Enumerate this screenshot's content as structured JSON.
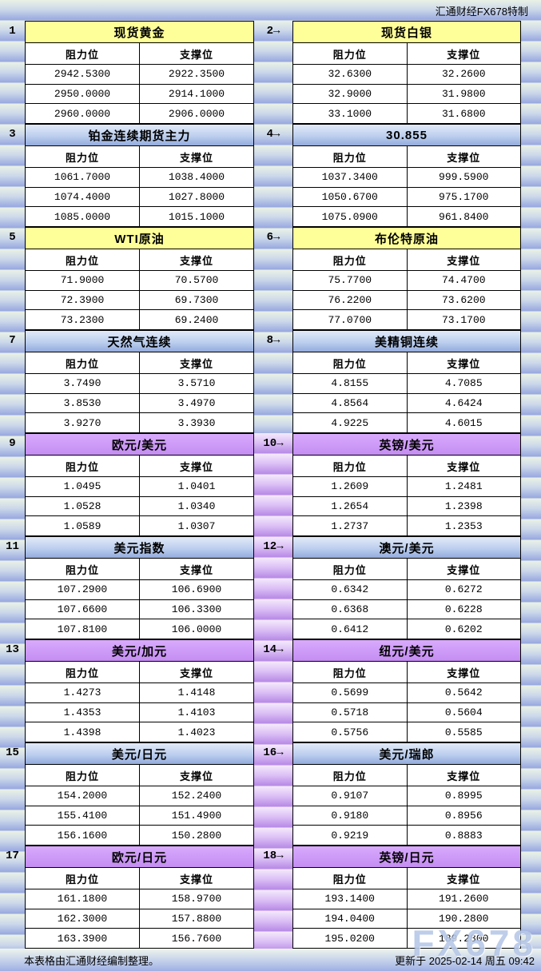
{
  "header": {
    "credit": "汇通财经FX678特制"
  },
  "footer": {
    "note": "本表格由汇通财经编制整理。",
    "updated": "更新于 2025-02-14 周五 09:42"
  },
  "watermark": "FX678",
  "icons": {
    "right_arrow": "→"
  },
  "col_headers": {
    "resistance": "阻力位",
    "support": "支撑位"
  },
  "sections": [
    {
      "num": "1",
      "title": "现货黄金",
      "theme": "yellow",
      "rows": [
        [
          "2942.5300",
          "2922.3500"
        ],
        [
          "2950.0000",
          "2914.1000"
        ],
        [
          "2960.0000",
          "2906.0000"
        ]
      ]
    },
    {
      "num": "2",
      "title": "现货白银",
      "theme": "yellow",
      "rows": [
        [
          "32.6300",
          "32.2600"
        ],
        [
          "32.9000",
          "31.9800"
        ],
        [
          "33.1000",
          "31.6800"
        ]
      ]
    },
    {
      "num": "3",
      "title": "铂金连续期货主力",
      "theme": "blue",
      "rows": [
        [
          "1061.7000",
          "1038.4000"
        ],
        [
          "1074.4000",
          "1027.8000"
        ],
        [
          "1085.0000",
          "1015.1000"
        ]
      ]
    },
    {
      "num": "4",
      "title": "30.855",
      "theme": "blue",
      "rows": [
        [
          "1037.3400",
          "999.5900"
        ],
        [
          "1050.6700",
          "975.1700"
        ],
        [
          "1075.0900",
          "961.8400"
        ]
      ]
    },
    {
      "num": "5",
      "title": "WTI原油",
      "theme": "yellow",
      "rows": [
        [
          "71.9000",
          "70.5700"
        ],
        [
          "72.3900",
          "69.7300"
        ],
        [
          "73.2300",
          "69.2400"
        ]
      ]
    },
    {
      "num": "6",
      "title": "布伦特原油",
      "theme": "yellow",
      "rows": [
        [
          "75.7700",
          "74.4700"
        ],
        [
          "76.2200",
          "73.6200"
        ],
        [
          "77.0700",
          "73.1700"
        ]
      ]
    },
    {
      "num": "7",
      "title": "天然气连续",
      "theme": "blue",
      "rows": [
        [
          "3.7490",
          "3.5710"
        ],
        [
          "3.8530",
          "3.4970"
        ],
        [
          "3.9270",
          "3.3930"
        ]
      ]
    },
    {
      "num": "8",
      "title": "美精铜连续",
      "theme": "blue",
      "rows": [
        [
          "4.8155",
          "4.7085"
        ],
        [
          "4.8564",
          "4.6424"
        ],
        [
          "4.9225",
          "4.6015"
        ]
      ]
    },
    {
      "num": "9",
      "title": "欧元/美元",
      "theme": "purple",
      "rows": [
        [
          "1.0495",
          "1.0401"
        ],
        [
          "1.0528",
          "1.0340"
        ],
        [
          "1.0589",
          "1.0307"
        ]
      ]
    },
    {
      "num": "10",
      "title": "英镑/美元",
      "theme": "purple",
      "rows": [
        [
          "1.2609",
          "1.2481"
        ],
        [
          "1.2654",
          "1.2398"
        ],
        [
          "1.2737",
          "1.2353"
        ]
      ]
    },
    {
      "num": "11",
      "title": "美元指数",
      "theme": "blue",
      "rows": [
        [
          "107.2900",
          "106.6900"
        ],
        [
          "107.6600",
          "106.3300"
        ],
        [
          "107.8100",
          "106.0000"
        ]
      ]
    },
    {
      "num": "12",
      "title": "澳元/美元",
      "theme": "blue",
      "rows": [
        [
          "0.6342",
          "0.6272"
        ],
        [
          "0.6368",
          "0.6228"
        ],
        [
          "0.6412",
          "0.6202"
        ]
      ]
    },
    {
      "num": "13",
      "title": "美元/加元",
      "theme": "purple",
      "rows": [
        [
          "1.4273",
          "1.4148"
        ],
        [
          "1.4353",
          "1.4103"
        ],
        [
          "1.4398",
          "1.4023"
        ]
      ]
    },
    {
      "num": "14",
      "title": "纽元/美元",
      "theme": "purple",
      "rows": [
        [
          "0.5699",
          "0.5642"
        ],
        [
          "0.5718",
          "0.5604"
        ],
        [
          "0.5756",
          "0.5585"
        ]
      ]
    },
    {
      "num": "15",
      "title": "美元/日元",
      "theme": "blue",
      "rows": [
        [
          "154.2000",
          "152.2400"
        ],
        [
          "155.4100",
          "151.4900"
        ],
        [
          "156.1600",
          "150.2800"
        ]
      ]
    },
    {
      "num": "16",
      "title": "美元/瑞郎",
      "theme": "blue",
      "rows": [
        [
          "0.9107",
          "0.8995"
        ],
        [
          "0.9180",
          "0.8956"
        ],
        [
          "0.9219",
          "0.8883"
        ]
      ]
    },
    {
      "num": "17",
      "title": "欧元/日元",
      "theme": "purple",
      "rows": [
        [
          "161.1800",
          "158.9700"
        ],
        [
          "162.3000",
          "157.8800"
        ],
        [
          "163.3900",
          "156.7600"
        ]
      ]
    },
    {
      "num": "18",
      "title": "英镑/日元",
      "theme": "purple",
      "rows": [
        [
          "193.1400",
          "191.2600"
        ],
        [
          "194.0400",
          "190.2800"
        ],
        [
          "195.0200",
          "189.2800"
        ]
      ]
    }
  ]
}
